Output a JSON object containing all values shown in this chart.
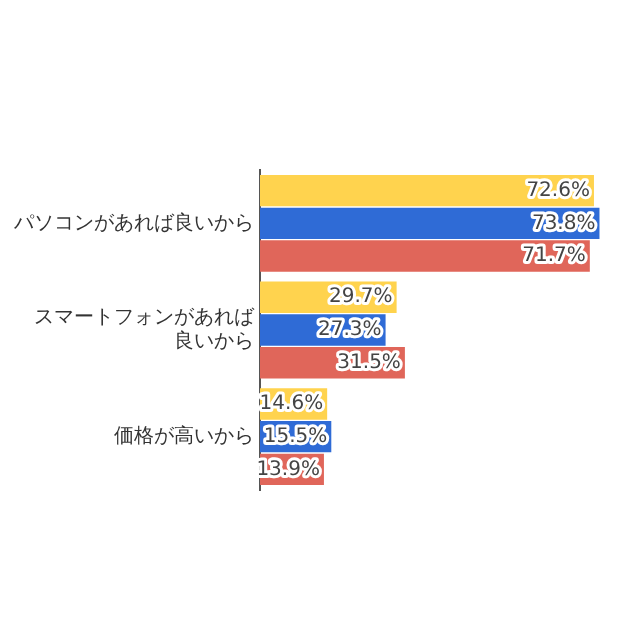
{
  "chart_data": {
    "type": "bar",
    "orientation": "horizontal",
    "categories": [
      "パソコンがあれば良いから",
      "スマートフォンがあれば良いから",
      "価格が高いから"
    ],
    "series": [
      {
        "color": "#ffd34e",
        "values": [
          72.6,
          29.7,
          14.6
        ],
        "value_labels": [
          "72.6%",
          "29.7%",
          "14.6%"
        ]
      },
      {
        "color": "#2f6bd6",
        "values": [
          73.8,
          27.3,
          15.5
        ],
        "value_labels": [
          "73.8%",
          "27.3%",
          "15.5%"
        ]
      },
      {
        "color": "#e0665a",
        "values": [
          71.7,
          31.5,
          13.9
        ],
        "value_labels": [
          "71.7%",
          "31.5%",
          "13.9%"
        ]
      }
    ],
    "tick_labels": "y",
    "legend": false
  }
}
